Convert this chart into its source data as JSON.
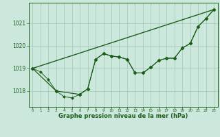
{
  "title": "Graphe pression niveau de la mer (hPa)",
  "bg_color": "#cce8dd",
  "grid_color": "#aaccbb",
  "line_color": "#1a5e1a",
  "xlim": [
    -0.5,
    23.5
  ],
  "ylim": [
    1017.3,
    1021.9
  ],
  "yticks": [
    1018,
    1019,
    1020,
    1021
  ],
  "xticks": [
    0,
    1,
    2,
    3,
    4,
    5,
    6,
    7,
    8,
    9,
    10,
    11,
    12,
    13,
    14,
    15,
    16,
    17,
    18,
    19,
    20,
    21,
    22,
    23
  ],
  "line1_x": [
    0,
    1,
    2,
    3,
    4,
    5,
    6,
    7,
    8,
    9,
    10,
    11,
    12,
    13,
    14,
    15,
    16,
    17,
    18,
    19,
    20,
    21,
    22,
    23
  ],
  "line1_y": [
    1019.0,
    1018.85,
    1018.5,
    1018.0,
    1017.75,
    1017.7,
    1017.85,
    1018.1,
    1019.4,
    1019.65,
    1019.55,
    1019.5,
    1019.4,
    1018.8,
    1018.8,
    1019.05,
    1019.35,
    1019.45,
    1019.45,
    1019.9,
    1020.1,
    1020.85,
    1021.2,
    1021.6
  ],
  "line2_x": [
    0,
    3,
    6,
    7,
    8,
    9,
    10,
    11,
    12,
    13,
    14,
    15,
    16,
    17,
    18,
    19,
    20,
    21,
    22,
    23
  ],
  "line2_y": [
    1019.0,
    1018.0,
    1017.85,
    1018.1,
    1019.4,
    1019.65,
    1019.55,
    1019.5,
    1019.4,
    1018.8,
    1018.8,
    1019.05,
    1019.35,
    1019.45,
    1019.45,
    1019.9,
    1020.1,
    1020.85,
    1021.2,
    1021.6
  ],
  "line3_x": [
    0,
    23
  ],
  "line3_y": [
    1019.0,
    1021.6
  ]
}
